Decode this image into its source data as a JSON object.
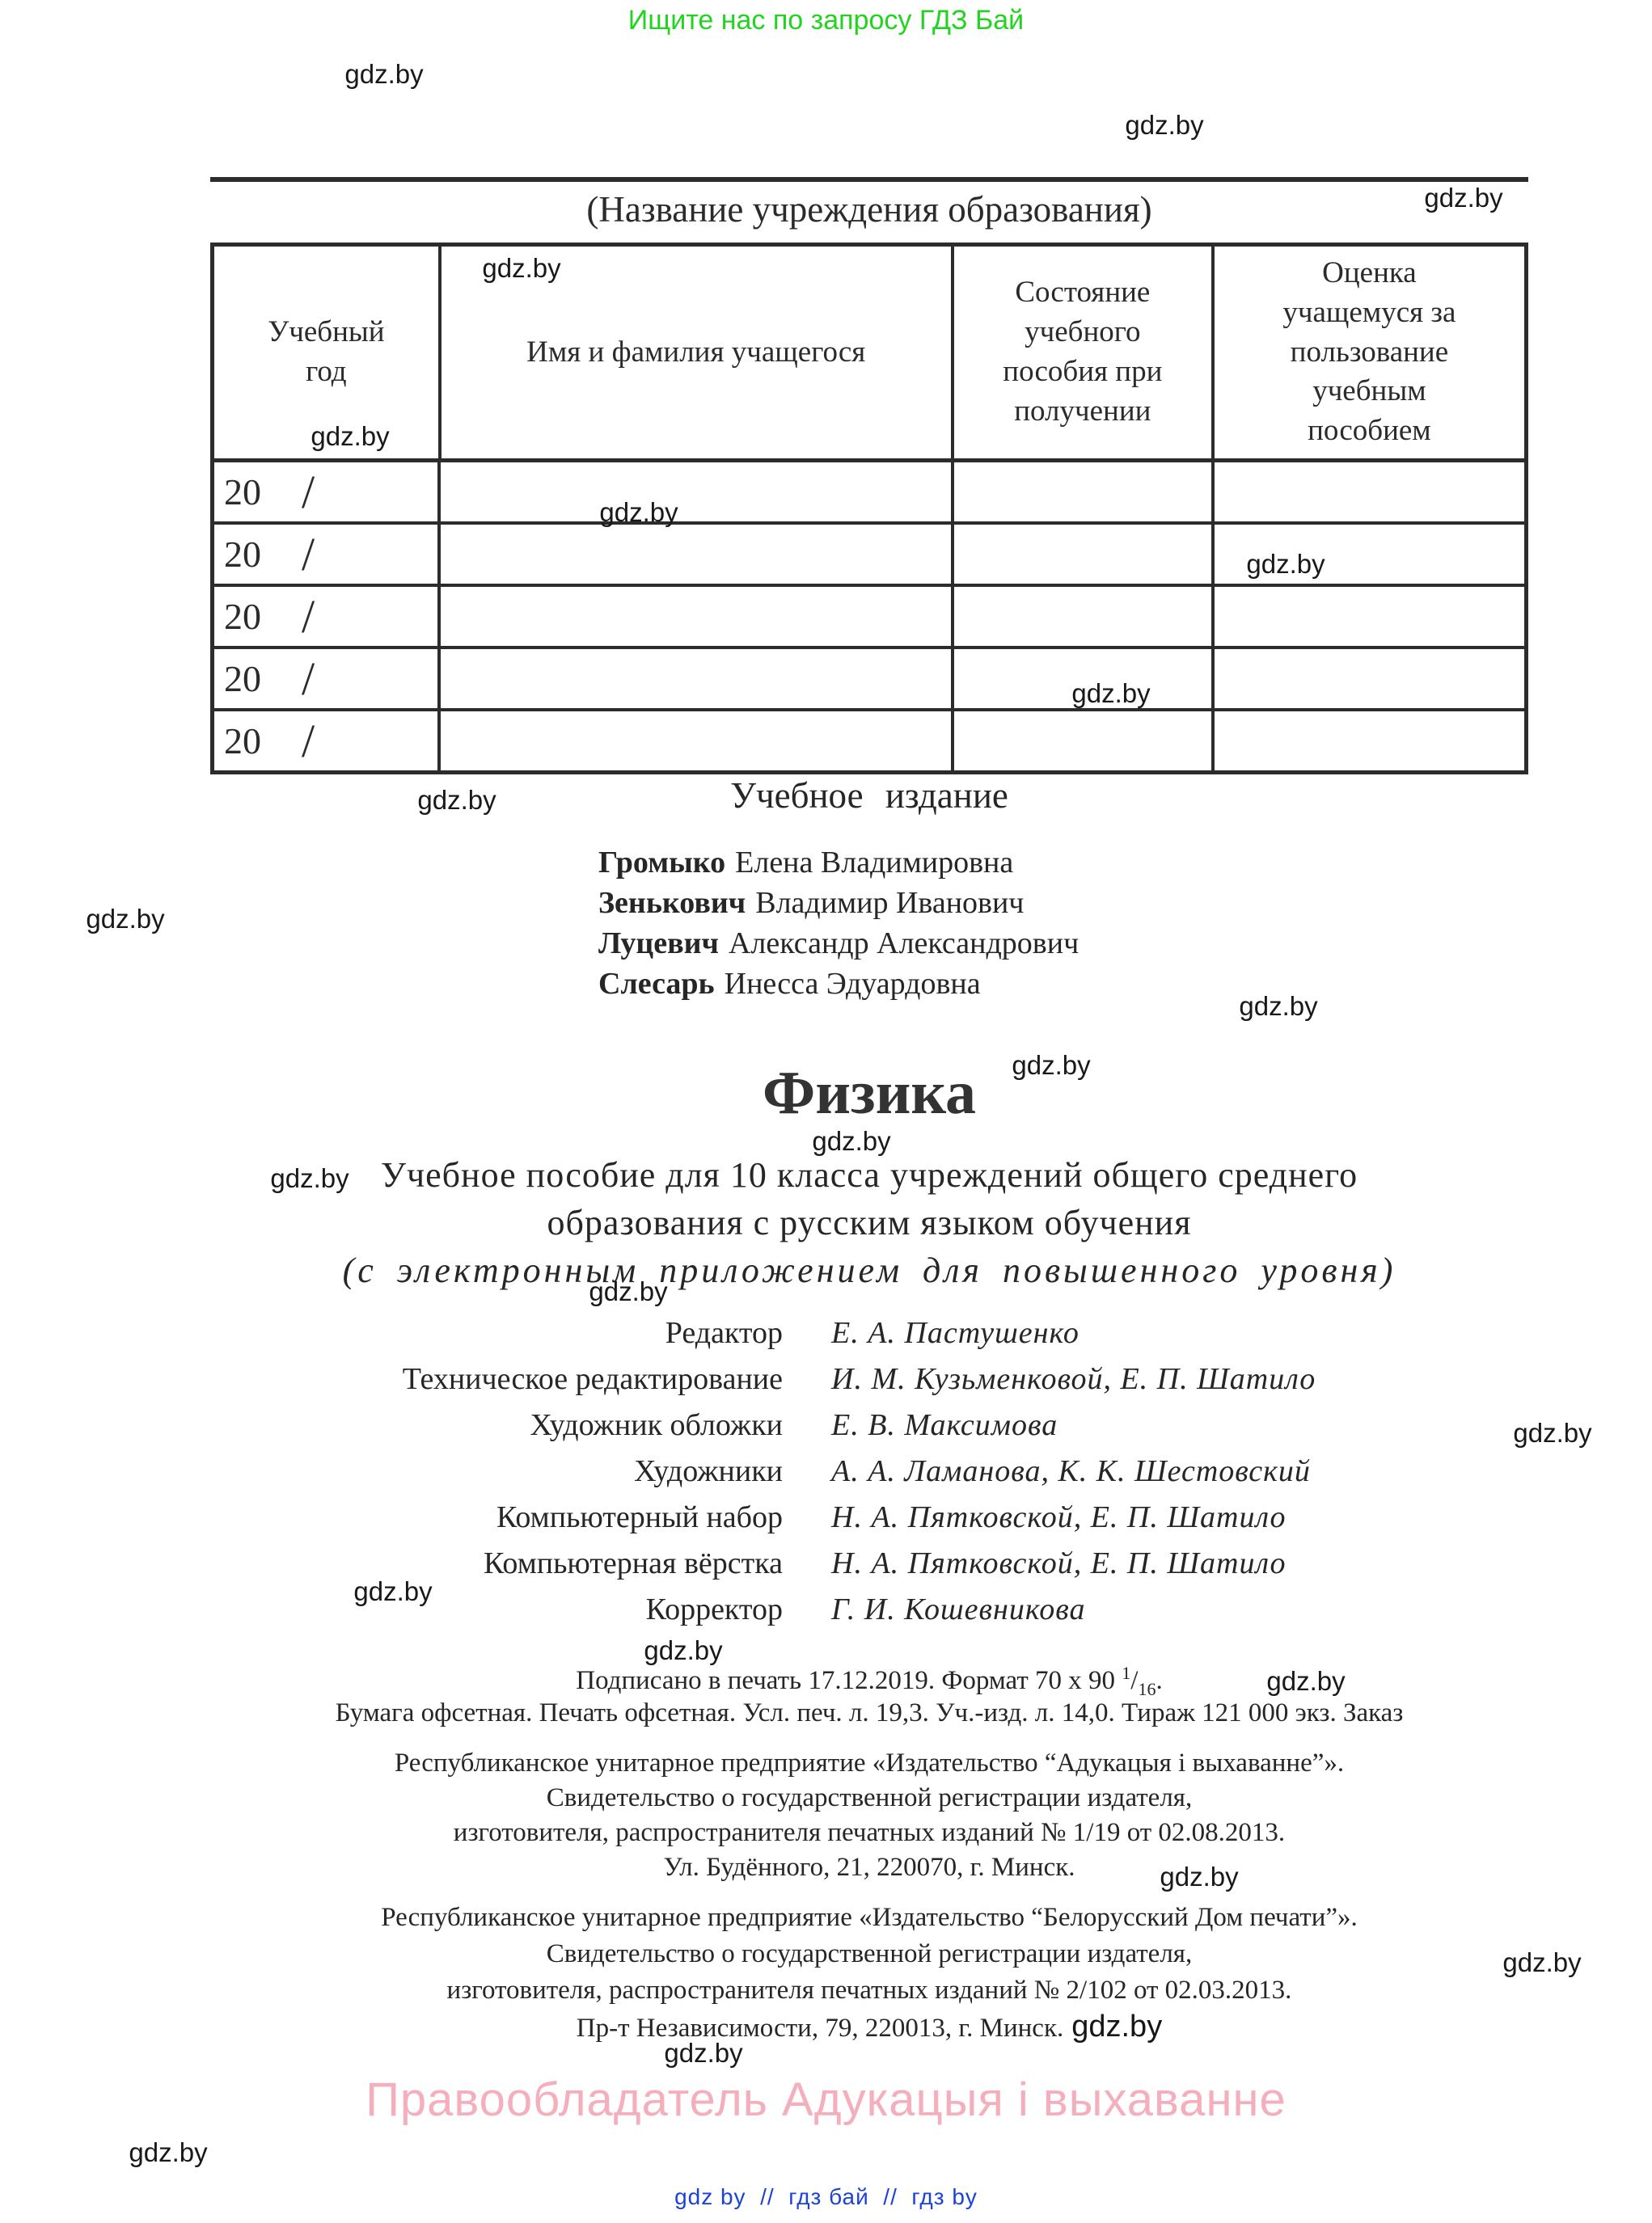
{
  "watermark": "gdz.by",
  "banner": {
    "text": "Ищите нас по запросу ГДЗ Бай",
    "color": "#22d41f"
  },
  "record_table": {
    "heading": "(Название учреждения образования)",
    "columns": [
      "Учебный год",
      "Имя и фамилия учащегося",
      "Состояние учебного пособия при получении",
      "Оценка учащемуся за пользование учебным пособием"
    ],
    "year_prefix": "20",
    "year_slash": "/",
    "row_count": 5
  },
  "edition": {
    "label": "Учебное издание",
    "authors": [
      {
        "surname": "Громыко",
        "name": "Елена Владимировна"
      },
      {
        "surname": "Зенькович",
        "name": "Владимир Иванович"
      },
      {
        "surname": "Луцевич",
        "name": "Александр Александрович"
      },
      {
        "surname": "Слесарь",
        "name": "Инесса Эдуардовна"
      }
    ]
  },
  "title_block": {
    "title": "Физика",
    "subtitle1": "Учебное пособие для 10 класса учреждений общего среднего",
    "subtitle2": "образования с русским языком обучения",
    "subtitle3": "(с электронным приложением для повышенного уровня)"
  },
  "credits": [
    {
      "role": "Редактор",
      "names": "Е. А. Пастушенко"
    },
    {
      "role": "Техническое редактирование",
      "names": "И. М. Кузьменковой, Е. П. Шатило"
    },
    {
      "role": "Художник обложки",
      "names": "Е. В. Максимова"
    },
    {
      "role": "Художники",
      "names": "А. А. Ламанова, К. К. Шестовский"
    },
    {
      "role": "Компьютерный набор",
      "names": "Н. А. Пятковской, Е. П. Шатило"
    },
    {
      "role": "Компьютерная вёрстка",
      "names": "Н. А. Пятковской, Е. П. Шатило"
    },
    {
      "role": "Корректор",
      "names": "Г. И. Кошевникова"
    }
  ],
  "imprint": {
    "line1_prefix": "Подписано в печать 17.12.2019. Формат 70 x 90 ",
    "fraction_top": "1",
    "fraction_slash": "/",
    "fraction_bottom": "16",
    "line1_suffix": ".",
    "line2": "Бумага офсетная. Печать офсетная. Усл. печ. л. 19,3. Уч.-изд. л. 14,0. Тираж 121 000 экз. Заказ"
  },
  "publisher1": {
    "line1": "Республиканское унитарное предприятие «Издательство “Адукацыя і выхаванне”».",
    "line2": "Свидетельство о государственной регистрации издателя,",
    "line3": "изготовителя, распространителя печатных изданий № 1/19 от 02.08.2013.",
    "line4": "Ул. Будённого, 21, 220070, г. Минск."
  },
  "publisher2": {
    "line1": "Республиканское унитарное предприятие «Издательство “Белорусский Дом печати”».",
    "line2": "Свидетельство о государственной регистрации издателя,",
    "line3": "изготовителя, распространителя печатных изданий № 2/102 от 02.03.2013.",
    "line4": "Пр-т Независимости, 79, 220013, г. Минск."
  },
  "rights": {
    "text": "Правообладатель Адукацыя і выхаванне",
    "color": "#f5aebc"
  },
  "footer": {
    "links": "gdz by  //  гдз бай  //  гдз by",
    "color": "#1b44d6"
  }
}
